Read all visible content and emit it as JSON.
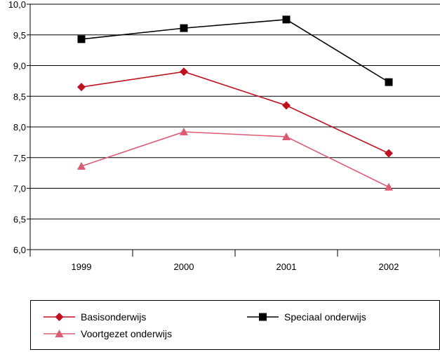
{
  "chart_data": {
    "type": "line",
    "categories": [
      "1999",
      "2000",
      "2001",
      "2002"
    ],
    "ylim": [
      6.0,
      10.0
    ],
    "ytick_values": [
      6.0,
      6.5,
      7.0,
      7.5,
      8.0,
      8.5,
      9.0,
      9.5,
      10.0
    ],
    "ytick_labels": [
      "6,0",
      "6,5",
      "7,0",
      "7,5",
      "8,0",
      "8,5",
      "9,0",
      "9,5",
      "10,0"
    ],
    "grid": true,
    "legend_position": "bottom",
    "series": [
      {
        "name": "Speciaal onderwijs",
        "marker": "square",
        "color": "#000000",
        "values": [
          9.43,
          9.61,
          9.75,
          8.73
        ]
      },
      {
        "name": "Basisonderwijs",
        "marker": "diamond",
        "color": "#c0111f",
        "values": [
          8.65,
          8.9,
          8.35,
          7.57
        ]
      },
      {
        "name": "Voortgezet onderwijs",
        "marker": "triangle",
        "color": "#dc5a73",
        "values": [
          7.36,
          7.92,
          7.84,
          7.02
        ]
      }
    ],
    "title": "",
    "xlabel": "",
    "ylabel": ""
  }
}
